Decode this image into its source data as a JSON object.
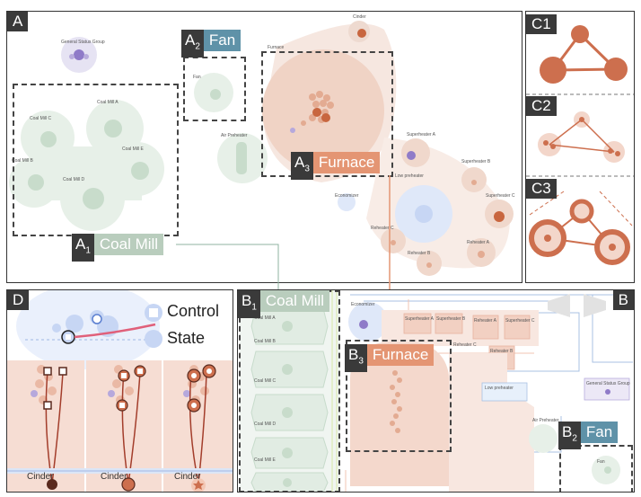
{
  "panels": {
    "a": "A",
    "b": "B",
    "c1": "C1",
    "c2": "C2",
    "c3": "C3",
    "d": "D"
  },
  "tags": {
    "a1": {
      "num": "A",
      "sub": "1",
      "text": "Coal Mill"
    },
    "a2": {
      "num": "A",
      "sub": "2",
      "text": "Fan"
    },
    "a3": {
      "num": "A",
      "sub": "3",
      "text": "Furnace"
    },
    "b1": {
      "num": "B",
      "sub": "1",
      "text": "Coal Mill"
    },
    "b2": {
      "num": "B",
      "sub": "2",
      "text": "Fan"
    },
    "b3": {
      "num": "B",
      "sub": "3",
      "text": "Furnace"
    }
  },
  "group_labels": {
    "general_status": "General Status Group",
    "coal_mill_a": "Coal Mill A",
    "coal_mill_b": "Coal Mill B",
    "coal_mill_c": "Coal Mill C",
    "coal_mill_d": "Coal Mill D",
    "coal_mill_e": "Coal Mill E",
    "fan": "Fan",
    "air_preheater": "Air Preheater",
    "furnace": "Furnace",
    "cinder": "Cinder",
    "superheater_a": "Superheater A",
    "superheater_b": "Superheater B",
    "superheater_c": "Superheater C",
    "economizer": "Economizer",
    "low_preheater": "Low preheater",
    "reheater_a": "Reheater A",
    "reheater_b": "Reheater B",
    "reheater_c": "Reheater C"
  },
  "legend": {
    "control": "Control",
    "state": "State"
  },
  "d_labels": {
    "cinder1": "Cinder",
    "cinder2": "Cinder",
    "cinder3": "Cinder"
  },
  "b_labels": {
    "coal_mill_a": "Coal Mill A",
    "coal_mill_b": "Coal Mill B",
    "coal_mill_c": "Coal Mill C",
    "coal_mill_d": "Coal Mill D",
    "coal_mill_e": "Coal Mill E",
    "economizer": "Economizer",
    "general_status": "General Status Group",
    "air_preheater": "Air Preheater",
    "fan": "Fan",
    "superheater_a": "Superheater A",
    "superheater_b": "Superheater B",
    "superheater_c": "Superheater C",
    "reheater_a": "Reheater A",
    "reheater_b": "Reheater B",
    "reheater_c": "Reheater C",
    "low_preheater": "Low preheater"
  },
  "colors": {
    "green": "#b9cdbd",
    "blue": "#5f92a8",
    "orange": "#e49573",
    "dark": "#3a3a3a"
  }
}
